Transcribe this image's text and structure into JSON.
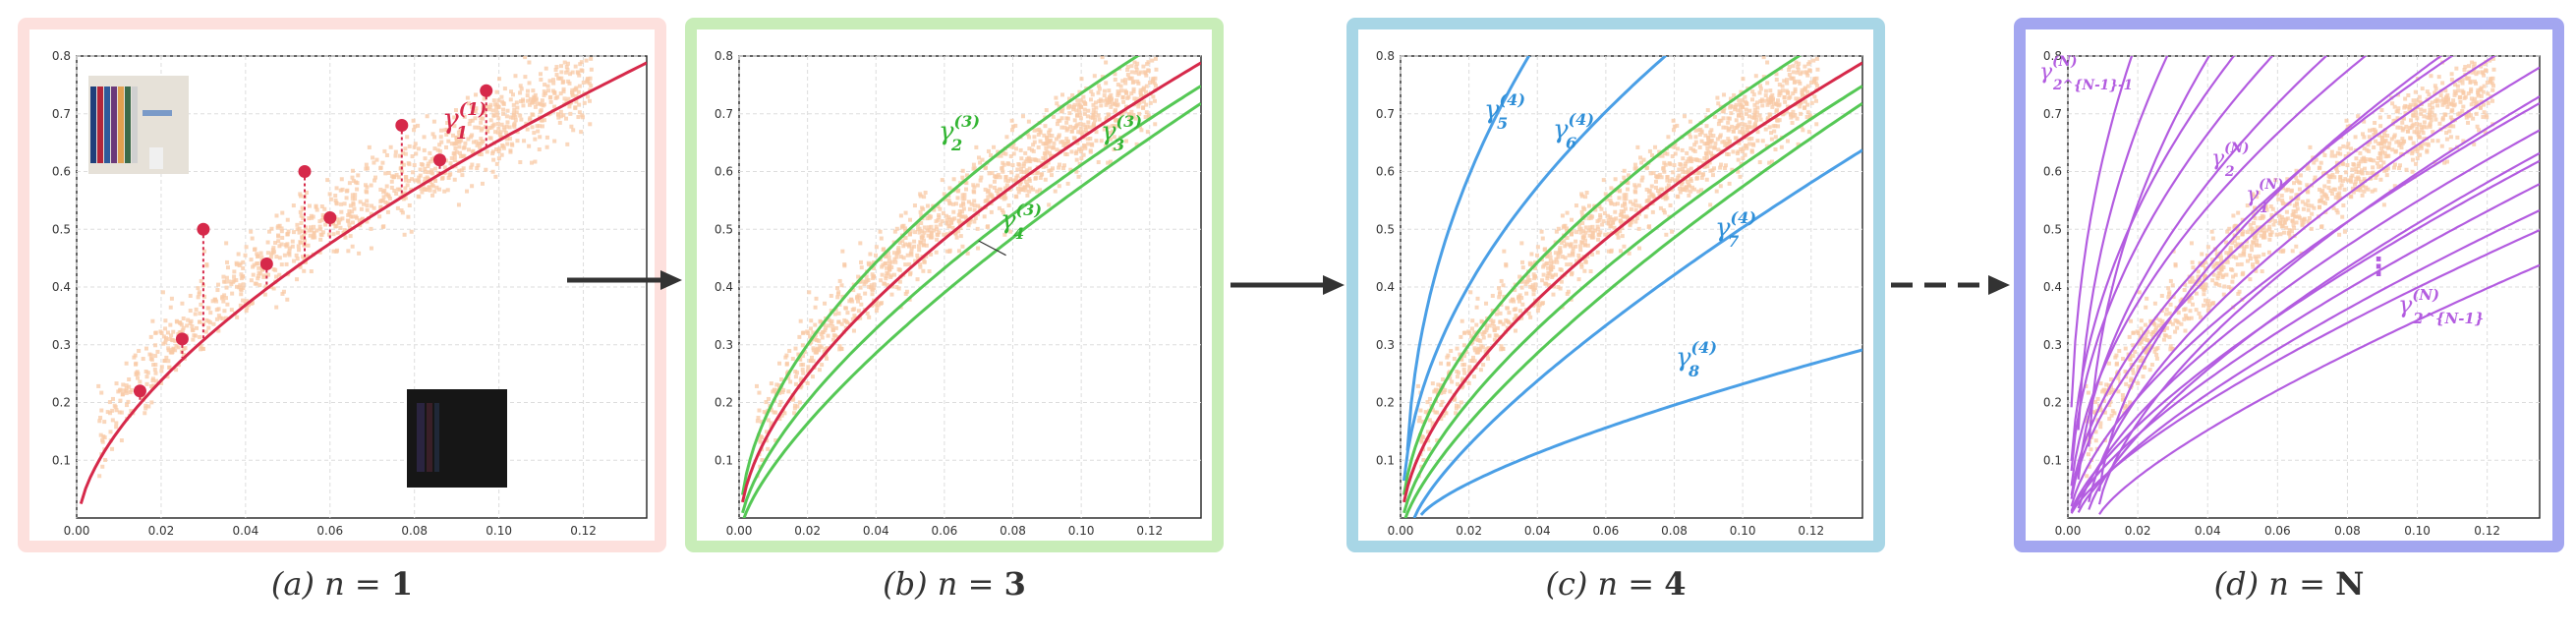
{
  "panels": [
    {
      "id": "a",
      "caption_prefix": "(a) ",
      "caption_var": "n",
      "caption_eq": " = ",
      "caption_val": "1",
      "frame_color": "#fde0dd",
      "curve_labels": [
        {
          "base": "γ",
          "sub": "1",
          "sup": "(1)",
          "color": "#d6294a"
        }
      ]
    },
    {
      "id": "b",
      "caption_prefix": "(b) ",
      "caption_var": "n",
      "caption_eq": " = ",
      "caption_val": "3",
      "frame_color": "#c8edb8",
      "curve_labels": [
        {
          "base": "γ",
          "sub": "2",
          "sup": "(3)",
          "color": "#33b533"
        },
        {
          "base": "γ",
          "sub": "3",
          "sup": "(3)",
          "color": "#33b533"
        },
        {
          "base": "γ",
          "sub": "4",
          "sup": "(3)",
          "color": "#33b533"
        }
      ]
    },
    {
      "id": "c",
      "caption_prefix": "(c) ",
      "caption_var": "n",
      "caption_eq": " = ",
      "caption_val": "4",
      "frame_color": "#a8d6e6",
      "curve_labels": [
        {
          "base": "γ",
          "sub": "5",
          "sup": "(4)",
          "color": "#2f8fd8"
        },
        {
          "base": "γ",
          "sub": "6",
          "sup": "(4)",
          "color": "#2f8fd8"
        },
        {
          "base": "γ",
          "sub": "7",
          "sup": "(4)",
          "color": "#2f8fd8"
        },
        {
          "base": "γ",
          "sub": "8",
          "sup": "(4)",
          "color": "#2f8fd8"
        }
      ]
    },
    {
      "id": "d",
      "caption_prefix": "(d) ",
      "caption_var": "n",
      "caption_eq": " = ",
      "caption_val": "N",
      "frame_color": "#a3a6f0",
      "curve_labels": [
        {
          "base": "γ",
          "sub": "2^{N-1}-1",
          "sup": "(N)",
          "color": "#b35ce0"
        },
        {
          "base": "γ",
          "sub": "2",
          "sup": "(N)",
          "color": "#b35ce0"
        },
        {
          "base": "γ",
          "sub": "1",
          "sup": "(N)",
          "color": "#b35ce0"
        },
        {
          "base": "γ",
          "sub": "2^{N-1}",
          "sup": "(N)",
          "color": "#b35ce0"
        }
      ],
      "ellipsis": "⋮"
    }
  ],
  "axes": {
    "x_ticks": [
      "0.00",
      "0.02",
      "0.04",
      "0.06",
      "0.08",
      "0.10",
      "0.12"
    ],
    "y_ticks": [
      "0.1",
      "0.2",
      "0.3",
      "0.4",
      "0.5",
      "0.6",
      "0.7",
      "0.8"
    ],
    "xlim": [
      0,
      0.135
    ],
    "ylim": [
      0,
      0.8
    ]
  },
  "arrows": {
    "solid_color": "#333333",
    "dashed_color": "#333333"
  },
  "colors": {
    "scatter": "#f8c9a6",
    "red_curve": "#d6294a",
    "green_curve": "#55c855",
    "blue_curve": "#4a9fe6",
    "purple_curve": "#b35ce0"
  }
}
